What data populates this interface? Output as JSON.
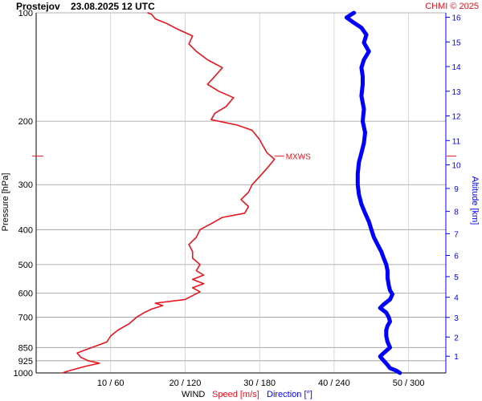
{
  "header": {
    "title": "Prostejov    23.08.2025 12 UTC",
    "credit": "CHMI © 2025"
  },
  "colors": {
    "speed": "#e8141e",
    "direction": "#0000ff",
    "grid": "#999999",
    "credit": "#e8141e"
  },
  "chart_data": {
    "type": "line",
    "pressure_axis": {
      "label": "Pressure [hPa]",
      "scale": "log",
      "range": [
        100,
        1000
      ],
      "ticks": [
        100,
        200,
        300,
        400,
        500,
        600,
        700,
        850,
        925,
        1000
      ]
    },
    "altitude_axis": {
      "label": "Altitude [km]",
      "ticks": [
        1,
        2,
        3,
        4,
        5,
        6,
        7,
        8,
        9,
        10,
        11,
        12,
        13,
        14,
        15,
        16
      ]
    },
    "x_axis": {
      "title": "WIND",
      "speed_label": "Speed [m/s]",
      "direction_label": "Direction [°]",
      "ticks": [
        "10 / 60",
        "20 / 120",
        "30 / 180",
        "40 / 240",
        "50 / 300"
      ],
      "speed_range": [
        0,
        55
      ],
      "direction_range": [
        0,
        330
      ]
    },
    "annotation": {
      "text": "MXWS",
      "pressure": 250
    },
    "series": [
      {
        "name": "Speed [m/s]",
        "color": "#e8141e",
        "points": [
          [
            1000,
            3.5
          ],
          [
            985,
            4.5
          ],
          [
            960,
            6.5
          ],
          [
            940,
            8.5
          ],
          [
            925,
            7.0
          ],
          [
            905,
            6.0
          ],
          [
            880,
            5.5
          ],
          [
            850,
            7.5
          ],
          [
            820,
            9.5
          ],
          [
            790,
            10.0
          ],
          [
            760,
            11.0
          ],
          [
            730,
            12.5
          ],
          [
            700,
            13.5
          ],
          [
            680,
            14.5
          ],
          [
            665,
            15.5
          ],
          [
            650,
            17.0
          ],
          [
            640,
            16.0
          ],
          [
            625,
            20.0
          ],
          [
            610,
            21.0
          ],
          [
            595,
            22.0
          ],
          [
            580,
            21.0
          ],
          [
            565,
            22.5
          ],
          [
            550,
            21.0
          ],
          [
            535,
            22.5
          ],
          [
            520,
            21.5
          ],
          [
            500,
            22.0
          ],
          [
            480,
            21.0
          ],
          [
            460,
            21.0
          ],
          [
            440,
            20.5
          ],
          [
            420,
            21.5
          ],
          [
            400,
            22.0
          ],
          [
            385,
            23.5
          ],
          [
            370,
            25.0
          ],
          [
            360,
            28.0
          ],
          [
            345,
            28.5
          ],
          [
            330,
            27.5
          ],
          [
            315,
            28.5
          ],
          [
            300,
            29.0
          ],
          [
            285,
            30.0
          ],
          [
            270,
            31.0
          ],
          [
            255,
            32.0
          ],
          [
            245,
            31.0
          ],
          [
            235,
            30.5
          ],
          [
            225,
            30.0
          ],
          [
            212,
            29.0
          ],
          [
            205,
            27.0
          ],
          [
            198,
            23.5
          ],
          [
            190,
            24.0
          ],
          [
            182,
            25.5
          ],
          [
            172,
            26.5
          ],
          [
            165,
            24.5
          ],
          [
            158,
            23.0
          ],
          [
            150,
            24.0
          ],
          [
            142,
            25.0
          ],
          [
            135,
            23.0
          ],
          [
            128,
            21.5
          ],
          [
            122,
            20.5
          ],
          [
            116,
            21.0
          ],
          [
            111,
            19.0
          ],
          [
            107,
            17.5
          ],
          [
            104,
            16.0
          ],
          [
            101,
            15.5
          ],
          [
            100,
            15.0
          ]
        ]
      },
      {
        "name": "Direction [°]",
        "color": "#0000ff",
        "points": [
          [
            1000,
            293
          ],
          [
            985,
            290
          ],
          [
            970,
            285
          ],
          [
            950,
            283
          ],
          [
            925,
            280
          ],
          [
            900,
            277
          ],
          [
            880,
            280
          ],
          [
            850,
            285
          ],
          [
            820,
            283
          ],
          [
            790,
            282
          ],
          [
            760,
            282
          ],
          [
            740,
            283
          ],
          [
            720,
            285
          ],
          [
            700,
            284
          ],
          [
            680,
            282
          ],
          [
            660,
            277
          ],
          [
            645,
            280
          ],
          [
            625,
            285
          ],
          [
            605,
            287
          ],
          [
            590,
            285
          ],
          [
            570,
            284
          ],
          [
            545,
            283
          ],
          [
            520,
            283
          ],
          [
            500,
            282
          ],
          [
            480,
            280
          ],
          [
            460,
            278
          ],
          [
            440,
            275
          ],
          [
            420,
            272
          ],
          [
            400,
            270
          ],
          [
            380,
            268
          ],
          [
            360,
            265
          ],
          [
            340,
            262
          ],
          [
            320,
            260
          ],
          [
            300,
            259
          ],
          [
            280,
            259
          ],
          [
            260,
            260
          ],
          [
            245,
            262
          ],
          [
            230,
            264
          ],
          [
            215,
            265
          ],
          [
            200,
            263
          ],
          [
            185,
            264
          ],
          [
            170,
            262
          ],
          [
            158,
            263
          ],
          [
            150,
            263
          ],
          [
            142,
            262
          ],
          [
            135,
            264
          ],
          [
            128,
            268
          ],
          [
            121,
            264
          ],
          [
            115,
            266
          ],
          [
            110,
            262
          ],
          [
            106,
            255
          ],
          [
            103,
            250
          ],
          [
            101,
            254
          ],
          [
            100,
            256
          ]
        ]
      }
    ]
  }
}
